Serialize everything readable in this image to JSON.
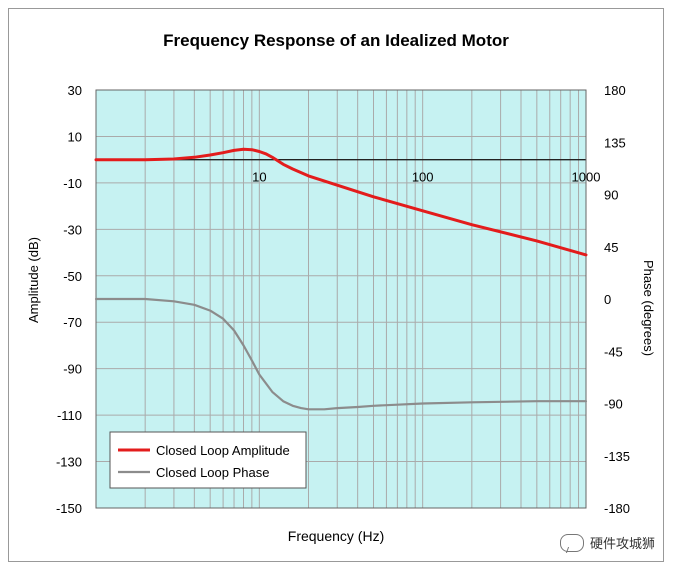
{
  "chart_data": {
    "type": "line",
    "title": "Frequency Response of an Idealized Motor",
    "xlabel": "Frequency (Hz)",
    "ylabel_left": "Amplitude (dB)",
    "ylabel_right": "Phase (degrees)",
    "x_scale": "log",
    "xlim": [
      1,
      1000
    ],
    "ylim_left": [
      -150,
      30
    ],
    "ylim_right": [
      -180,
      180
    ],
    "x_ticks": [
      "10",
      "100",
      "1000"
    ],
    "y_left_ticks": [
      "30",
      "10",
      "-10",
      "-30",
      "-50",
      "-70",
      "-90",
      "-110",
      "-130",
      "-150"
    ],
    "y_right_ticks": [
      "180",
      "135",
      "90",
      "45",
      "0",
      "-45",
      "-90",
      "-135",
      "-180"
    ],
    "grid": true,
    "plot_background": "#c6f2f2",
    "legend_position": "bottom-left",
    "series": [
      {
        "name": "Closed Loop Amplitude",
        "axis": "left",
        "color": "#e31c1c",
        "x": [
          1,
          2,
          3,
          4,
          5,
          6,
          7,
          8,
          9,
          10,
          11,
          12,
          14,
          16,
          20,
          30,
          50,
          100,
          200,
          500,
          1000
        ],
        "y": [
          0,
          0,
          0.3,
          1,
          2,
          3,
          4,
          4.5,
          4.3,
          3.5,
          2.5,
          1,
          -2,
          -4,
          -7,
          -11,
          -16,
          -22,
          -28,
          -35,
          -41
        ]
      },
      {
        "name": "Closed Loop Phase",
        "axis": "right",
        "color": "#8c8c8c",
        "x": [
          1,
          2,
          3,
          4,
          5,
          6,
          7,
          8,
          9,
          10,
          12,
          14,
          16,
          18,
          20,
          25,
          30,
          40,
          50,
          70,
          100,
          200,
          500,
          1000
        ],
        "y": [
          0,
          0,
          -2,
          -5,
          -10,
          -17,
          -27,
          -40,
          -53,
          -65,
          -80,
          -88,
          -92,
          -94,
          -95,
          -95,
          -94,
          -93,
          -92,
          -91,
          -90,
          -89,
          -88,
          -88
        ]
      }
    ]
  },
  "watermark": {
    "text": "硬件攻城狮"
  }
}
